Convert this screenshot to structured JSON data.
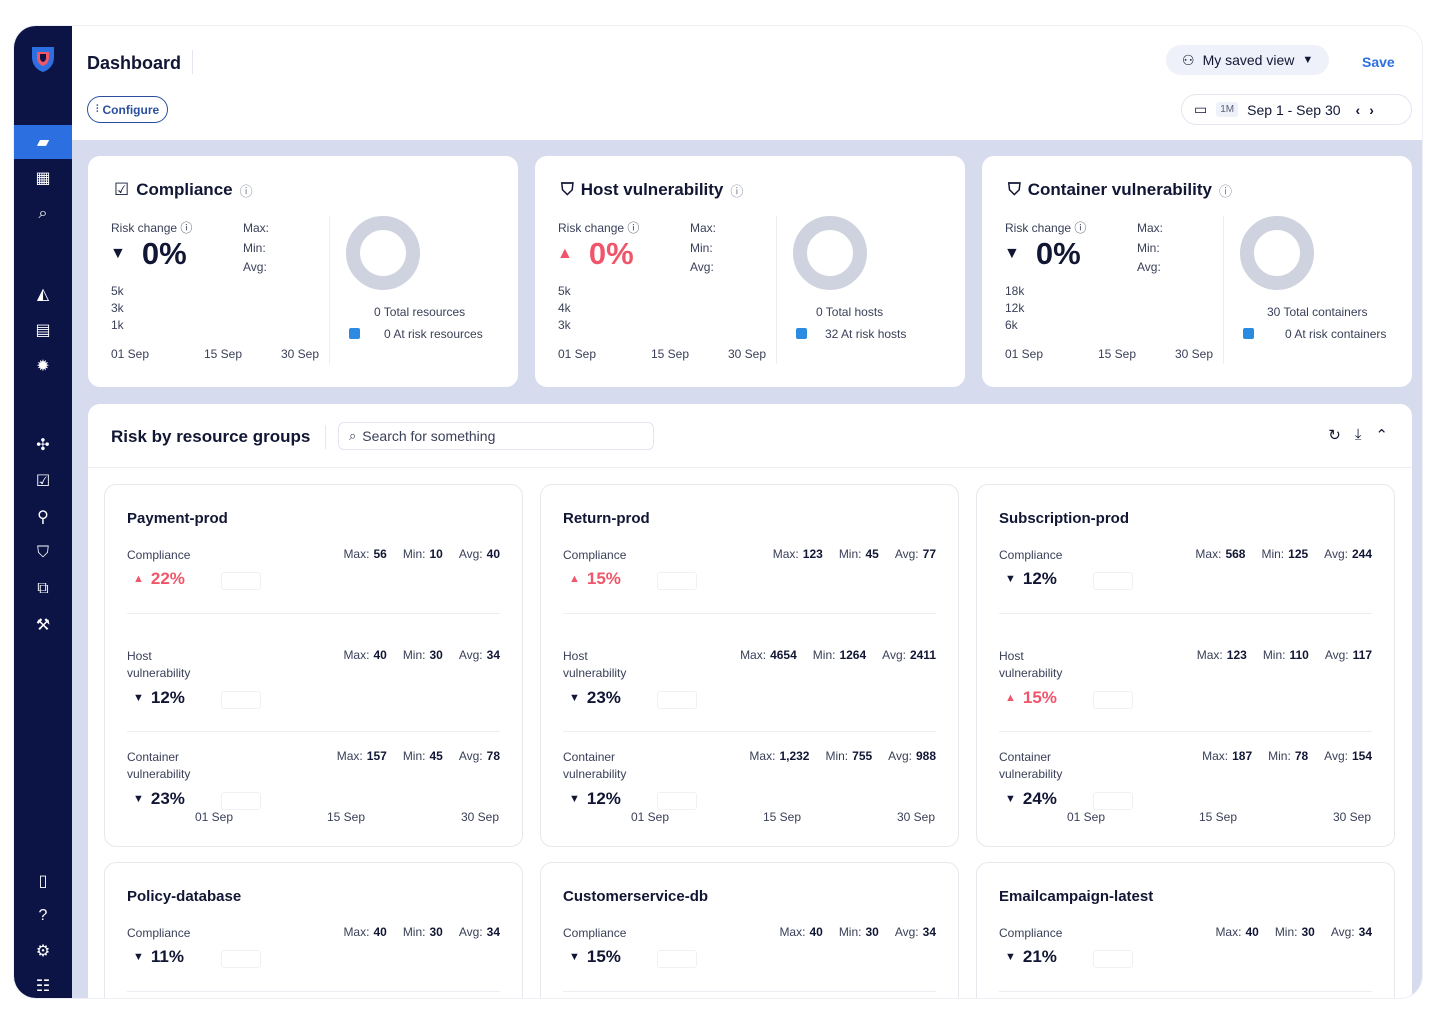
{
  "app": {
    "title": "Dashboard",
    "configure": "Configure",
    "saved_view": "My saved view",
    "save": "Save",
    "range_badge": "1M",
    "date_range": "Sep 1 - Sep 30"
  },
  "colors": {
    "sidebar": "#0c1446",
    "accent": "#2b6fe0",
    "up": "#f0556a",
    "down": "#111634"
  },
  "summary_cards": [
    {
      "title": "Compliance",
      "risk_change_label": "Risk change",
      "direction": "down",
      "value": "0%",
      "max": "Max:",
      "min": "Min:",
      "avg": "Avg:",
      "y_ticks": [
        "5k",
        "3k",
        "1k"
      ],
      "x_ticks": [
        "01 Sep",
        "15 Sep",
        "30 Sep"
      ],
      "total_label": "0 Total resources",
      "risk_label": "0 At risk resources"
    },
    {
      "title": "Host vulnerability",
      "risk_change_label": "Risk change",
      "direction": "up",
      "value": "0%",
      "max": "Max:",
      "min": "Min:",
      "avg": "Avg:",
      "y_ticks": [
        "5k",
        "4k",
        "3k"
      ],
      "x_ticks": [
        "01 Sep",
        "15 Sep",
        "30 Sep"
      ],
      "total_label": "0 Total hosts",
      "risk_label": "32 At risk hosts"
    },
    {
      "title": "Container vulnerability",
      "risk_change_label": "Risk change",
      "direction": "down",
      "value": "0%",
      "max": "Max:",
      "min": "Min:",
      "avg": "Avg:",
      "y_ticks": [
        "18k",
        "12k",
        "6k"
      ],
      "x_ticks": [
        "01 Sep",
        "15 Sep",
        "30 Sep"
      ],
      "total_label": "30 Total containers",
      "risk_label": "0 At risk containers"
    }
  ],
  "panel": {
    "title": "Risk by resource groups",
    "search_placeholder": "Search for something"
  },
  "groups": [
    {
      "name": "Payment-prod",
      "metrics": [
        {
          "label": "Compliance",
          "max": "56",
          "min": "10",
          "avg": "40",
          "dir": "up",
          "value": "22%"
        },
        {
          "label": "Host vulnerability",
          "max": "40",
          "min": "30",
          "avg": "34",
          "dir": "down",
          "value": "12%"
        },
        {
          "label": "Container vulnerability",
          "max": "157",
          "min": "45",
          "avg": "78",
          "dir": "down",
          "value": "23%"
        }
      ],
      "x_ticks": [
        "01 Sep",
        "15 Sep",
        "30 Sep"
      ]
    },
    {
      "name": "Return-prod",
      "metrics": [
        {
          "label": "Compliance",
          "max": "123",
          "min": "45",
          "avg": "77",
          "dir": "up",
          "value": "15%"
        },
        {
          "label": "Host vulnerability",
          "max": "4654",
          "min": "1264",
          "avg": "2411",
          "dir": "down",
          "value": "23%"
        },
        {
          "label": "Container vulnerability",
          "max": "1,232",
          "min": "755",
          "avg": "988",
          "dir": "down",
          "value": "12%"
        }
      ],
      "x_ticks": [
        "01 Sep",
        "15 Sep",
        "30 Sep"
      ]
    },
    {
      "name": "Subscription-prod",
      "metrics": [
        {
          "label": "Compliance",
          "max": "568",
          "min": "125",
          "avg": "244",
          "dir": "down",
          "value": "12%"
        },
        {
          "label": "Host vulnerability",
          "max": "123",
          "min": "110",
          "avg": "117",
          "dir": "up",
          "value": "15%"
        },
        {
          "label": "Container vulnerability",
          "max": "187",
          "min": "78",
          "avg": "154",
          "dir": "down",
          "value": "24%"
        }
      ],
      "x_ticks": [
        "01 Sep",
        "15 Sep",
        "30 Sep"
      ]
    },
    {
      "name": "Policy-database",
      "metrics": [
        {
          "label": "Compliance",
          "max": "40",
          "min": "30",
          "avg": "34",
          "dir": "down",
          "value": "11%"
        }
      ]
    },
    {
      "name": "Customerservice-db",
      "metrics": [
        {
          "label": "Compliance",
          "max": "40",
          "min": "30",
          "avg": "34",
          "dir": "down",
          "value": "15%"
        }
      ]
    },
    {
      "name": "Emailcampaign-latest",
      "metrics": [
        {
          "label": "Compliance",
          "max": "40",
          "min": "30",
          "avg": "34",
          "dir": "down",
          "value": "21%"
        }
      ]
    }
  ],
  "sidebar_icons": [
    "dashboard-icon",
    "apps-icon",
    "search-icon",
    "alerts-icon",
    "terminal-icon",
    "settings-gear-icon",
    "network-icon",
    "compliance-icon",
    "identity-icon",
    "shield-icon",
    "code-icon",
    "remediation-icon",
    "docs-icon",
    "help-icon",
    "settings-icon",
    "reports-icon"
  ]
}
